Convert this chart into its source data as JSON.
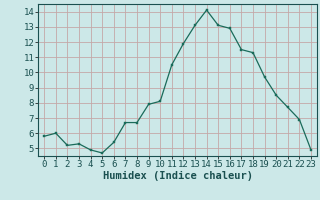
{
  "x": [
    0,
    1,
    2,
    3,
    4,
    5,
    6,
    7,
    8,
    9,
    10,
    11,
    12,
    13,
    14,
    15,
    16,
    17,
    18,
    19,
    20,
    21,
    22,
    23
  ],
  "y": [
    5.8,
    6.0,
    5.2,
    5.3,
    4.9,
    4.7,
    5.4,
    6.7,
    6.7,
    7.9,
    8.1,
    10.5,
    11.9,
    13.1,
    14.1,
    13.1,
    12.9,
    11.5,
    11.3,
    9.7,
    8.5,
    7.7,
    6.9,
    4.9
  ],
  "line_color": "#1a6b5a",
  "marker_color": "#1a6b5a",
  "bg_color": "#cce8e8",
  "grid_color_h": "#c0b0b0",
  "grid_color_v": "#c0b0b0",
  "xlabel": "Humidex (Indice chaleur)",
  "ylim": [
    4.5,
    14.5
  ],
  "xlim": [
    -0.5,
    23.5
  ],
  "yticks": [
    5,
    6,
    7,
    8,
    9,
    10,
    11,
    12,
    13,
    14
  ],
  "xticks": [
    0,
    1,
    2,
    3,
    4,
    5,
    6,
    7,
    8,
    9,
    10,
    11,
    12,
    13,
    14,
    15,
    16,
    17,
    18,
    19,
    20,
    21,
    22,
    23
  ],
  "tick_fontsize": 6.5,
  "xlabel_fontsize": 7.5
}
